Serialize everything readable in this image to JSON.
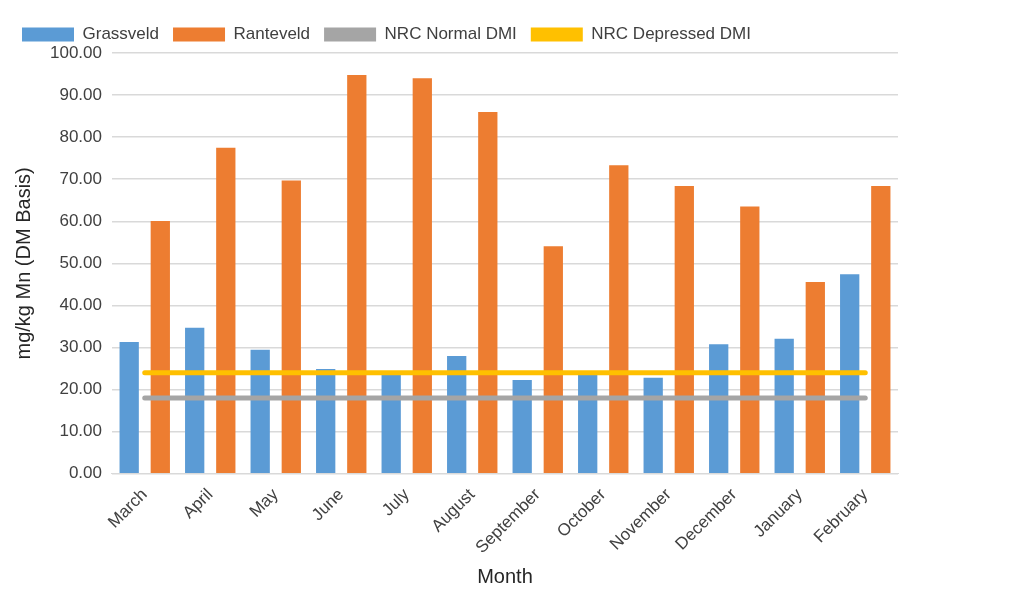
{
  "chart_data": {
    "type": "bar",
    "xlabel": "Month",
    "ylabel": "mg/kg Mn (DM Basis)",
    "categories": [
      "March",
      "April",
      "May",
      "June",
      "July",
      "August",
      "September",
      "October",
      "November",
      "December",
      "January",
      "February"
    ],
    "series": [
      {
        "name": "Grassveld",
        "color": "#5b9bd5",
        "values": [
          31.3,
          34.7,
          29.5,
          24.9,
          24.0,
          28.0,
          22.3,
          24.0,
          22.8,
          30.8,
          32.1,
          47.4
        ]
      },
      {
        "name": "Ranteveld",
        "color": "#ed7d31",
        "values": [
          60.1,
          77.5,
          69.7,
          94.8,
          94.0,
          86.0,
          54.1,
          73.3,
          68.4,
          63.5,
          45.6,
          68.4
        ]
      },
      {
        "name": "NRC Normal DMI",
        "type": "line",
        "color": "#a5a5a5",
        "values": [
          18,
          18,
          18,
          18,
          18,
          18,
          18,
          18,
          18,
          18,
          18,
          18
        ]
      },
      {
        "name": "NRC Depressed DMI",
        "type": "line",
        "color": "#ffc000",
        "values": [
          24,
          24,
          24,
          24,
          24,
          24,
          24,
          24,
          24,
          24,
          24,
          24
        ]
      }
    ],
    "ylim": [
      0,
      100
    ],
    "yticks": [
      {
        "value": 0,
        "label": "0.00"
      },
      {
        "value": 10,
        "label": "10.00"
      },
      {
        "value": 20,
        "label": "20.00"
      },
      {
        "value": 30,
        "label": "30.00"
      },
      {
        "value": 40,
        "label": "40.00"
      },
      {
        "value": 50,
        "label": "50.00"
      },
      {
        "value": 60,
        "label": "60.00"
      },
      {
        "value": 70,
        "label": "70.00"
      },
      {
        "value": 80,
        "label": "80.00"
      },
      {
        "value": 90,
        "label": "90.00"
      },
      {
        "value": 100,
        "label": "100.00"
      }
    ],
    "grid": "y",
    "legend": "top",
    "marker": "none",
    "line_style": "solid"
  }
}
